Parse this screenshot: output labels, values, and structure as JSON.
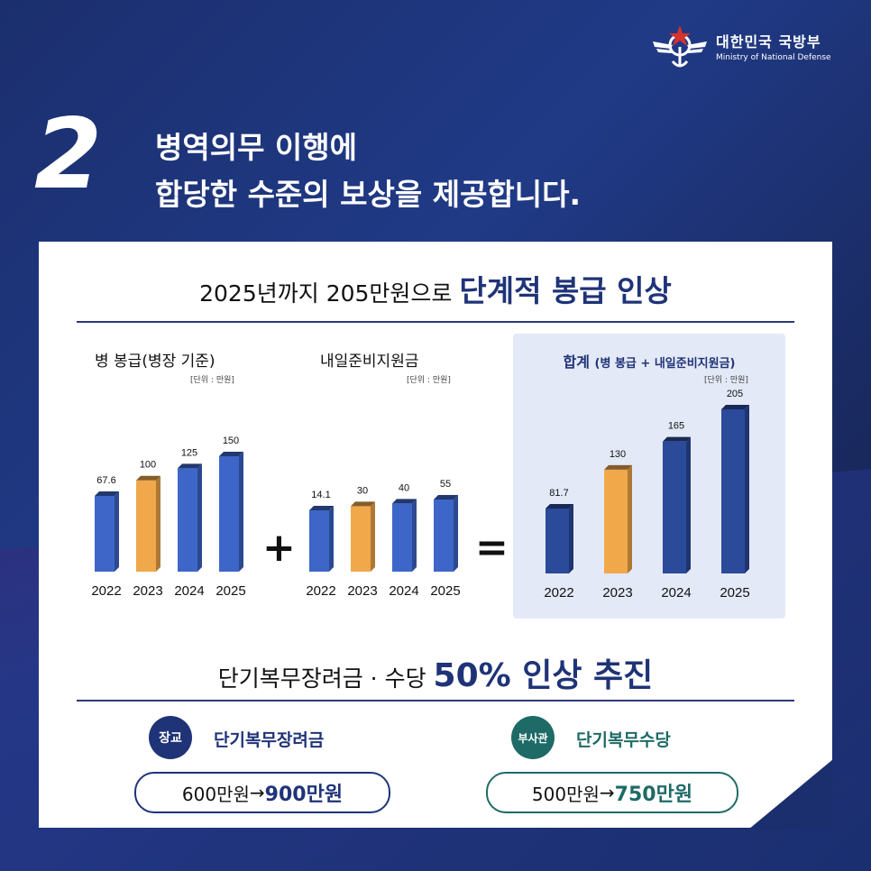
{
  "logo": {
    "name_ko": "대한민국 국방부",
    "name_en": "Ministry of National Defense"
  },
  "number": "2",
  "headline": {
    "line1": "병역의무 이행에",
    "line2": "합당한 수준의 보상을 제공합니다."
  },
  "section1": {
    "prefix": "2025년까지 205만원으로 ",
    "emphasis": "단계적 봉급 인상"
  },
  "operators": {
    "plus": "+",
    "equals": "="
  },
  "colors": {
    "navy": "#1f3377",
    "blue_bar": "#3d66c8",
    "orange_bar": "#f0a84a",
    "dark_bar": "#2b4a9a",
    "teal": "#1e6a66"
  },
  "chart_data": [
    {
      "type": "bar",
      "title": "병 봉급(병장 기준)",
      "unit": "[단위 : 만원]",
      "categories": [
        "2022",
        "2023",
        "2024",
        "2025"
      ],
      "values": [
        67.6,
        100,
        125,
        150
      ],
      "labels": [
        "67.6",
        "100",
        "125",
        "150"
      ],
      "highlight": "2023"
    },
    {
      "type": "bar",
      "title": "내일준비지원금",
      "unit": "[단위 : 만원]",
      "categories": [
        "2022",
        "2023",
        "2024",
        "2025"
      ],
      "values": [
        14.1,
        30,
        40,
        55
      ],
      "labels": [
        "14.1",
        "30",
        "40",
        "55"
      ],
      "highlight": "2023"
    },
    {
      "type": "bar",
      "title": "합계",
      "subtitle": "(병 봉급 + 내일준비지원금)",
      "unit": "[단위 : 만원]",
      "categories": [
        "2022",
        "2023",
        "2024",
        "2025"
      ],
      "values": [
        81.7,
        130,
        165,
        205
      ],
      "labels": [
        "81.7",
        "130",
        "165",
        "205"
      ],
      "highlight": "2023"
    }
  ],
  "section2": {
    "prefix": "단기복무장려금 · 수당 ",
    "emphasis": "50% 인상 추진"
  },
  "bonus": [
    {
      "badge": "장교",
      "title": "단기복무장려금",
      "from": "600만원",
      "arrow": " → ",
      "to": "900만원"
    },
    {
      "badge": "부사관",
      "title": "단기복무수당",
      "from": "500만원",
      "arrow": " → ",
      "to": "750만원"
    }
  ]
}
